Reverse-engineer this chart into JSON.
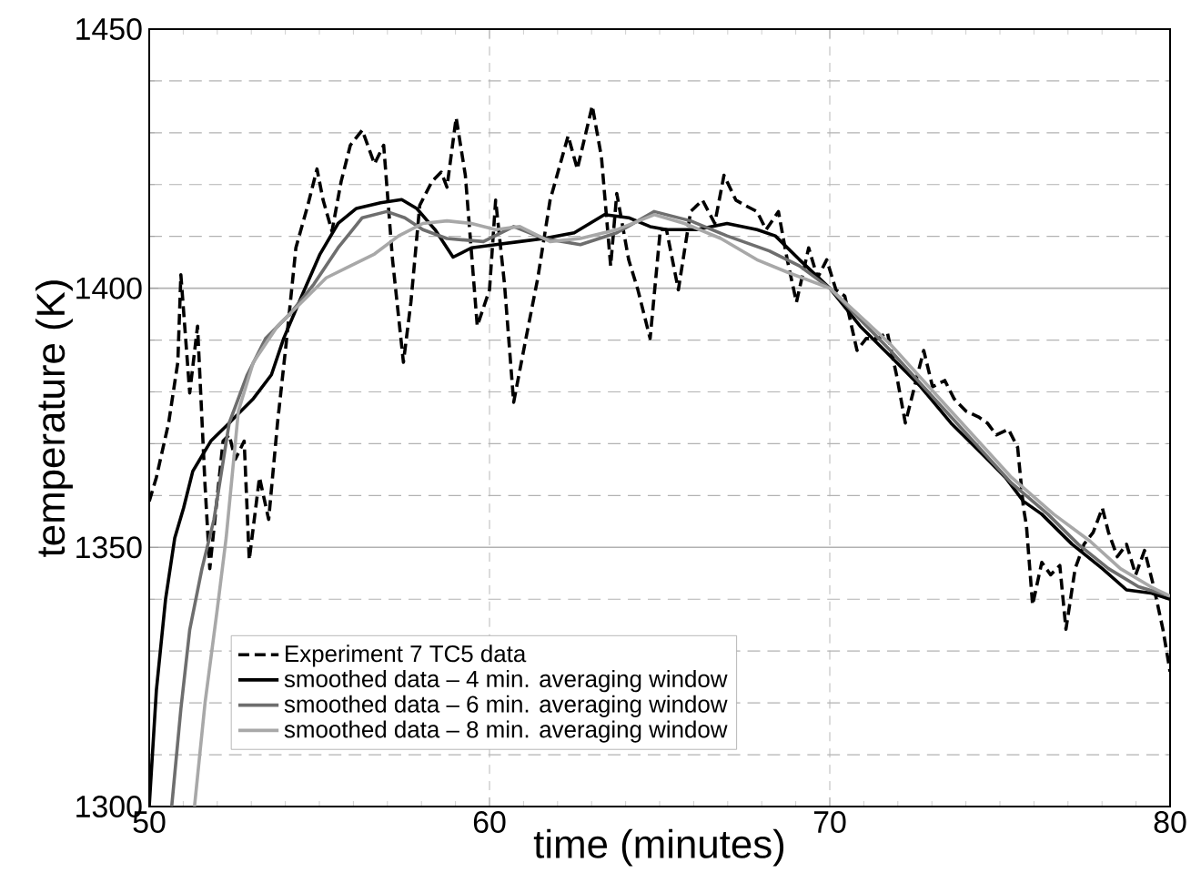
{
  "chart_data": {
    "type": "line",
    "xlabel": "time (minutes)",
    "ylabel": "temperature (K)",
    "xlim": [
      50,
      80
    ],
    "ylim": [
      1300,
      1450
    ],
    "xticks": [
      50,
      {
        "value": 51,
        "label": null
      },
      {
        "value": 52,
        "label": null
      },
      {
        "value": 53,
        "label": null
      },
      {
        "value": 54,
        "label": null
      },
      {
        "value": 55,
        "label": null
      },
      {
        "value": 56,
        "label": null
      },
      {
        "value": 57,
        "label": null
      },
      {
        "value": 58,
        "label": null
      },
      {
        "value": 59,
        "label": null
      },
      60,
      {
        "value": 61,
        "label": null
      },
      {
        "value": 62,
        "label": null
      },
      {
        "value": 63,
        "label": null
      },
      {
        "value": 64,
        "label": null
      },
      {
        "value": 65,
        "label": null
      },
      {
        "value": 66,
        "label": null
      },
      {
        "value": 67,
        "label": null
      },
      {
        "value": 68,
        "label": null
      },
      {
        "value": 69,
        "label": null
      },
      70,
      {
        "value": 71,
        "label": null
      },
      {
        "value": 72,
        "label": null
      },
      {
        "value": 73,
        "label": null
      },
      {
        "value": 74,
        "label": null
      },
      {
        "value": 75,
        "label": null
      },
      {
        "value": 76,
        "label": null
      },
      {
        "value": 77,
        "label": null
      },
      {
        "value": 78,
        "label": null
      },
      {
        "value": 79,
        "label": null
      },
      80
    ],
    "yticks": [
      1300,
      {
        "value": 1310,
        "label": null
      },
      {
        "value": 1320,
        "label": null
      },
      {
        "value": 1330,
        "label": null
      },
      {
        "value": 1340,
        "label": null
      },
      1350,
      {
        "value": 1360,
        "label": null
      },
      {
        "value": 1370,
        "label": null
      },
      {
        "value": 1380,
        "label": null
      },
      {
        "value": 1390,
        "label": null
      },
      1400,
      {
        "value": 1410,
        "label": null
      },
      {
        "value": 1420,
        "label": null
      },
      {
        "value": 1430,
        "label": null
      },
      {
        "value": 1440,
        "label": null
      },
      1450
    ],
    "grid": true,
    "legend": "bottom left",
    "marker": "none",
    "series": [
      {
        "name": "Experiment 7 TC5 data",
        "color": "#000000",
        "line_style": "dashed",
        "x": [
          50.0,
          50.21,
          50.57,
          50.84,
          50.93,
          51.19,
          51.42,
          51.64,
          51.78,
          52.17,
          52.35,
          52.53,
          52.79,
          52.94,
          53.24,
          53.51,
          53.77,
          54.04,
          54.31,
          54.66,
          54.93,
          55.11,
          55.37,
          55.64,
          55.91,
          56.26,
          56.62,
          56.89,
          57.15,
          57.47,
          57.69,
          57.95,
          58.31,
          58.58,
          58.75,
          59.02,
          59.29,
          59.64,
          60.0,
          60.18,
          60.44,
          60.71,
          61.07,
          61.42,
          61.78,
          62.31,
          62.58,
          63.02,
          63.29,
          63.56,
          63.74,
          64.09,
          64.36,
          64.72,
          65.02,
          65.2,
          65.55,
          65.91,
          66.26,
          66.62,
          66.89,
          67.24,
          67.51,
          67.86,
          68.13,
          68.49,
          68.75,
          69.02,
          69.38,
          69.64,
          69.91,
          70.18,
          70.44,
          70.8,
          71.07,
          71.42,
          71.69,
          71.96,
          72.22,
          72.49,
          72.76,
          73.02,
          73.38,
          73.65,
          74.0,
          74.36,
          74.63,
          74.89,
          75.25,
          75.52,
          75.69,
          75.78,
          75.96,
          76.23,
          76.49,
          76.76,
          76.94,
          77.21,
          77.47,
          77.74,
          78.01,
          78.19,
          78.45,
          78.72,
          78.99,
          79.25,
          79.52,
          79.79,
          80.0
        ],
        "values": [
          1358.9,
          1363.5,
          1374.0,
          1385.7,
          1402.6,
          1379.8,
          1392.7,
          1362.0,
          1345.9,
          1370.5,
          1371.7,
          1367.0,
          1370.5,
          1347.6,
          1363.5,
          1355.4,
          1374.0,
          1390.3,
          1407.8,
          1416.0,
          1423.0,
          1417.0,
          1411.0,
          1420.6,
          1427.6,
          1430.5,
          1424.0,
          1427.6,
          1405.5,
          1385.7,
          1397.3,
          1416.0,
          1420.6,
          1422.4,
          1419.5,
          1432.9,
          1421.8,
          1392.7,
          1399.7,
          1417.0,
          1400.8,
          1378.0,
          1390.3,
          1402.0,
          1417.0,
          1429.4,
          1423.0,
          1435.2,
          1425.3,
          1404.3,
          1418.3,
          1405.5,
          1399.7,
          1390.3,
          1411.3,
          1411.3,
          1399.7,
          1414.8,
          1417.0,
          1412.5,
          1421.8,
          1417.0,
          1416.0,
          1414.8,
          1411.3,
          1414.8,
          1405.5,
          1397.3,
          1407.8,
          1402.0,
          1405.5,
          1399.7,
          1398.5,
          1388.0,
          1390.3,
          1390.3,
          1391.5,
          1383.3,
          1374.0,
          1381.0,
          1388.0,
          1381.0,
          1382.2,
          1378.7,
          1376.3,
          1375.2,
          1374.0,
          1371.7,
          1372.8,
          1369.3,
          1357.7,
          1354.1,
          1338.9,
          1347.1,
          1344.7,
          1346.5,
          1334.2,
          1345.9,
          1350.6,
          1352.9,
          1357.6,
          1352.9,
          1348.2,
          1350.6,
          1344.7,
          1349.4,
          1342.4,
          1334.2,
          1326.0
        ]
      },
      {
        "name": "smoothed data – 4 min. averaging window",
        "color": "#000000",
        "line_style": "solid",
        "x": [
          50.0,
          50.21,
          50.48,
          50.75,
          51.01,
          51.28,
          51.81,
          52.35,
          53.06,
          53.59,
          53.95,
          54.48,
          55.02,
          55.55,
          56.09,
          56.8,
          57.42,
          57.86,
          58.4,
          58.93,
          59.47,
          60.18,
          60.89,
          61.6,
          62.49,
          63.38,
          64.09,
          64.72,
          65.2,
          66.09,
          66.98,
          67.86,
          68.4,
          69.11,
          70.0,
          70.89,
          71.78,
          72.67,
          73.56,
          74.45,
          75.16,
          75.69,
          76.23,
          77.12,
          78.01,
          78.72,
          79.43,
          80.0
        ],
        "values": [
          1300.0,
          1322.4,
          1340.0,
          1351.8,
          1357.6,
          1364.7,
          1370.5,
          1374.0,
          1378.7,
          1383.3,
          1390.3,
          1398.5,
          1406.6,
          1412.5,
          1415.4,
          1416.5,
          1417.1,
          1415.4,
          1411.3,
          1406.0,
          1407.8,
          1408.4,
          1409.0,
          1409.6,
          1410.7,
          1414.2,
          1413.6,
          1411.9,
          1411.3,
          1411.3,
          1412.5,
          1411.3,
          1410.1,
          1405.5,
          1400.0,
          1392.7,
          1386.9,
          1381.0,
          1374.0,
          1368.2,
          1363.5,
          1358.9,
          1356.4,
          1350.6,
          1345.9,
          1341.8,
          1341.2,
          1340.0
        ]
      },
      {
        "name": "smoothed data – 6 min. averaging window",
        "color": "#6e6e6e",
        "line_style": "solid",
        "x": [
          50.66,
          50.93,
          51.19,
          51.55,
          51.9,
          52.35,
          52.88,
          53.42,
          54.13,
          54.84,
          55.55,
          56.26,
          56.98,
          57.51,
          58.04,
          58.75,
          59.82,
          60.71,
          61.6,
          62.67,
          63.74,
          64.84,
          65.91,
          66.98,
          68.22,
          69.11,
          70.0,
          71.78,
          73.56,
          75.34,
          76.41,
          77.3,
          78.19,
          79.07,
          80.0
        ],
        "values": [
          1300.0,
          1318.8,
          1334.1,
          1345.9,
          1355.3,
          1374.0,
          1383.3,
          1390.3,
          1395.0,
          1400.8,
          1407.8,
          1413.6,
          1414.8,
          1413.6,
          1411.3,
          1409.6,
          1409.0,
          1411.9,
          1409.6,
          1408.4,
          1410.7,
          1414.8,
          1413.0,
          1410.1,
          1407.2,
          1404.3,
          1400.0,
          1388.0,
          1375.2,
          1362.4,
          1356.4,
          1350.6,
          1345.9,
          1342.4,
          1340.6
        ]
      },
      {
        "name": "smoothed data – 8 min. averaging window",
        "color": "#a8a8a8",
        "line_style": "solid",
        "x": [
          51.33,
          51.64,
          51.99,
          52.26,
          52.62,
          53.06,
          53.77,
          54.48,
          55.2,
          55.91,
          56.62,
          57.33,
          58.04,
          58.75,
          59.47,
          60.18,
          60.89,
          61.78,
          62.67,
          63.74,
          64.84,
          65.73,
          66.8,
          67.86,
          68.75,
          70.0,
          71.78,
          73.56,
          75.34,
          76.58,
          77.65,
          78.54,
          79.43,
          80.0
        ],
        "values": [
          1300.0,
          1320.0,
          1337.6,
          1351.8,
          1376.3,
          1385.7,
          1392.7,
          1397.3,
          1402.0,
          1404.3,
          1406.6,
          1410.1,
          1412.5,
          1413.0,
          1412.5,
          1411.3,
          1411.9,
          1409.0,
          1409.6,
          1411.3,
          1414.2,
          1412.5,
          1409.6,
          1405.5,
          1403.1,
          1400.0,
          1389.2,
          1376.3,
          1363.5,
          1356.4,
          1351.2,
          1345.9,
          1342.4,
          1340.6
        ]
      }
    ]
  }
}
